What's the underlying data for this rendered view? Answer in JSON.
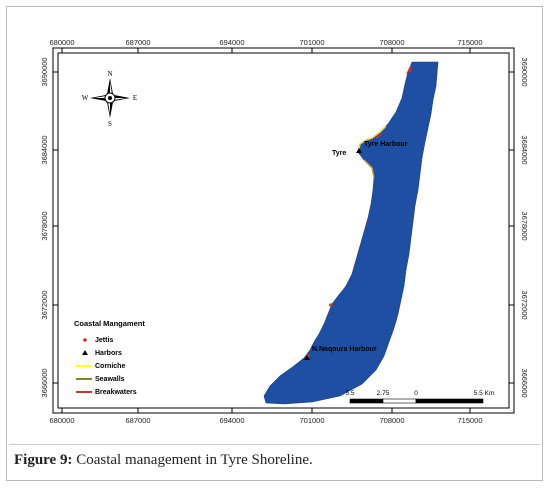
{
  "map": {
    "x_ticks": [
      "680000",
      "687000",
      "694000",
      "701000",
      "708000",
      "715000"
    ],
    "y_ticks": [
      "3690000",
      "3684000",
      "3678000",
      "3672000",
      "3666000"
    ],
    "compass": {
      "n": "N",
      "s": "S",
      "e": "E",
      "w": "W"
    },
    "places": {
      "tyre": "Tyre",
      "tyre_harbour": "Tyre Harbour",
      "naqoura_harbour": "N.Naqoura Harbour"
    },
    "legend": {
      "title": "Coastal Mangament",
      "items": [
        {
          "label": "Jettis",
          "symbol": "dot",
          "color": "#c0392b"
        },
        {
          "label": "Harbors",
          "symbol": "triangle",
          "color": "#000000"
        },
        {
          "label": "Corniche",
          "symbol": "line",
          "color": "#ffff33"
        },
        {
          "label": "Seawalls",
          "symbol": "line",
          "color": "#7a8a2a"
        },
        {
          "label": "Breakwaters",
          "symbol": "line",
          "color": "#c0392b"
        }
      ]
    },
    "scale_bar": {
      "labels": [
        "5.5",
        "2.75",
        "0",
        "5.5 Km"
      ]
    },
    "colors": {
      "sea": "#1f4fa3",
      "coast_line": "#e8c94a",
      "frame": "#000000"
    }
  },
  "caption": {
    "label": "Figure 9:",
    "text": " Coastal management in Tyre Shoreline."
  }
}
